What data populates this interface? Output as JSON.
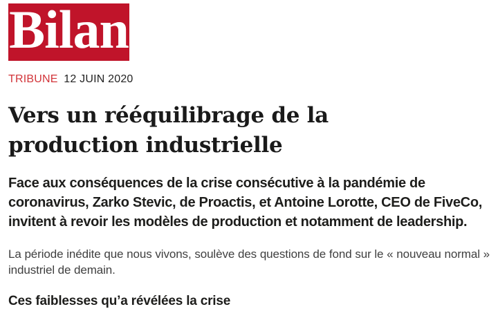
{
  "brand": {
    "logo_text": "Bilan",
    "logo_background_color": "#c0142a",
    "logo_text_color": "#ffffff"
  },
  "meta": {
    "category_label": "TRIBUNE",
    "category_color": "#d23439",
    "date": "12 JUIN 2020"
  },
  "article": {
    "headline": "Vers un rééquilibrage de la production industrielle",
    "lead": "Face aux conséquences de la crise consécutive à la pandémie de coronavirus, Zarko Stevic, de Proactis, et Antoine Lorotte, CEO de FiveCo, invitent à revoir les modèles de production et notamment de leadership.",
    "body_paragraph": "La période inédite que nous vivons, soulève des questions de fond sur le « nouveau normal » industriel de demain.",
    "subheading": "Ces faiblesses qu’a révélées la crise"
  }
}
